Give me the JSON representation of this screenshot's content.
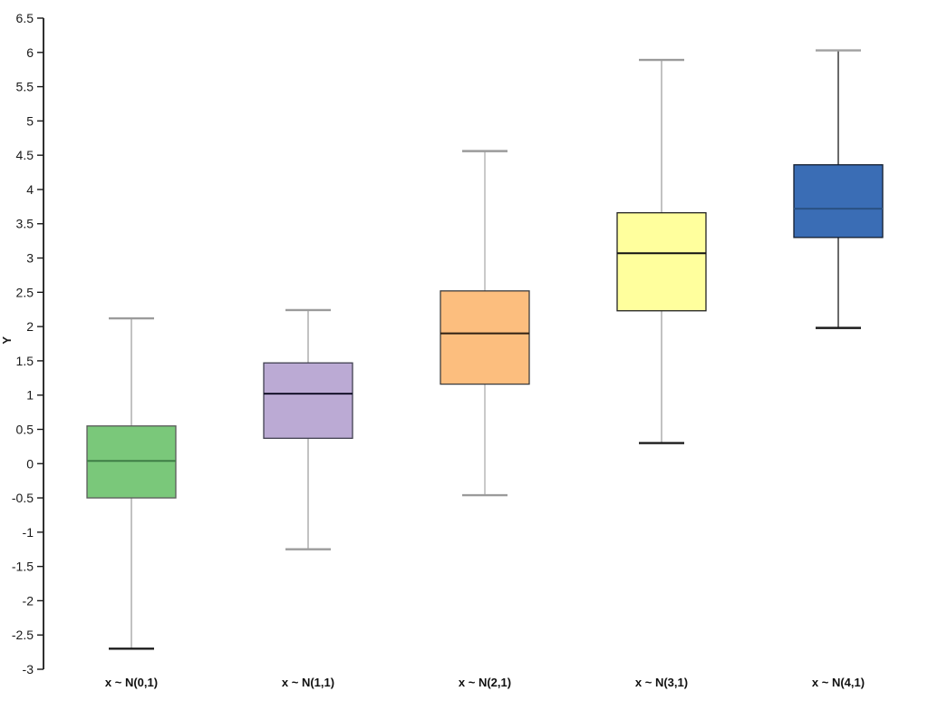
{
  "page": {
    "background": "#ffffff"
  },
  "chart_data": {
    "type": "box",
    "title": "",
    "xlabel": "",
    "ylabel": "Y",
    "ylim": [
      -3,
      6.5
    ],
    "ytick_step": 0.5,
    "grid": false,
    "legend": false,
    "axis_color": "#1a1a1a",
    "categories": [
      "x ~ N(0,1)",
      "x ~ N(1,1)",
      "x ~ N(2,1)",
      "x ~ N(3,1)",
      "x ~ N(4,1)"
    ],
    "series": [
      {
        "label": "x ~ N(0,1)",
        "low": -2.7,
        "q1": -0.5,
        "median": 0.04,
        "q3": 0.55,
        "high": 2.12,
        "fill": "#7ac87a",
        "border": "#5a5a5a",
        "median_color": "#3f7d46",
        "whisker_color": "#a9a9a9",
        "cap_top_color": "#9b9b9b",
        "cap_bottom_color": "#1c1c1c"
      },
      {
        "label": "x ~ N(1,1)",
        "low": -1.25,
        "q1": 0.37,
        "median": 1.02,
        "q3": 1.47,
        "high": 2.24,
        "fill": "#bbaad4",
        "border": "#404050",
        "median_color": "#14122a",
        "whisker_color": "#a9a9a9",
        "cap_top_color": "#9b9b9b",
        "cap_bottom_color": "#9b9b9b"
      },
      {
        "label": "x ~ N(2,1)",
        "low": -0.46,
        "q1": 1.16,
        "median": 1.9,
        "q3": 2.52,
        "high": 4.56,
        "fill": "#fcbe7e",
        "border": "#3c3c3c",
        "median_color": "#2e2012",
        "whisker_color": "#b3b3b3",
        "cap_top_color": "#9b9b9b",
        "cap_bottom_color": "#9b9b9b"
      },
      {
        "label": "x ~ N(3,1)",
        "low": 0.3,
        "q1": 2.23,
        "median": 3.07,
        "q3": 3.66,
        "high": 5.89,
        "fill": "#ffff9d",
        "border": "#222222",
        "median_color": "#111111",
        "whisker_color": "#a9a9a9",
        "cap_top_color": "#9b9b9b",
        "cap_bottom_color": "#1c1c1c"
      },
      {
        "label": "x ~ N(4,1)",
        "low": 1.98,
        "q1": 3.3,
        "median": 3.72,
        "q3": 4.36,
        "high": 6.03,
        "fill": "#3a6db5",
        "border": "#121c2c",
        "median_color": "#2a5183",
        "whisker_color": "#2b2b2b",
        "cap_top_color": "#a0a0a0",
        "cap_bottom_color": "#1c1c1c"
      }
    ]
  }
}
